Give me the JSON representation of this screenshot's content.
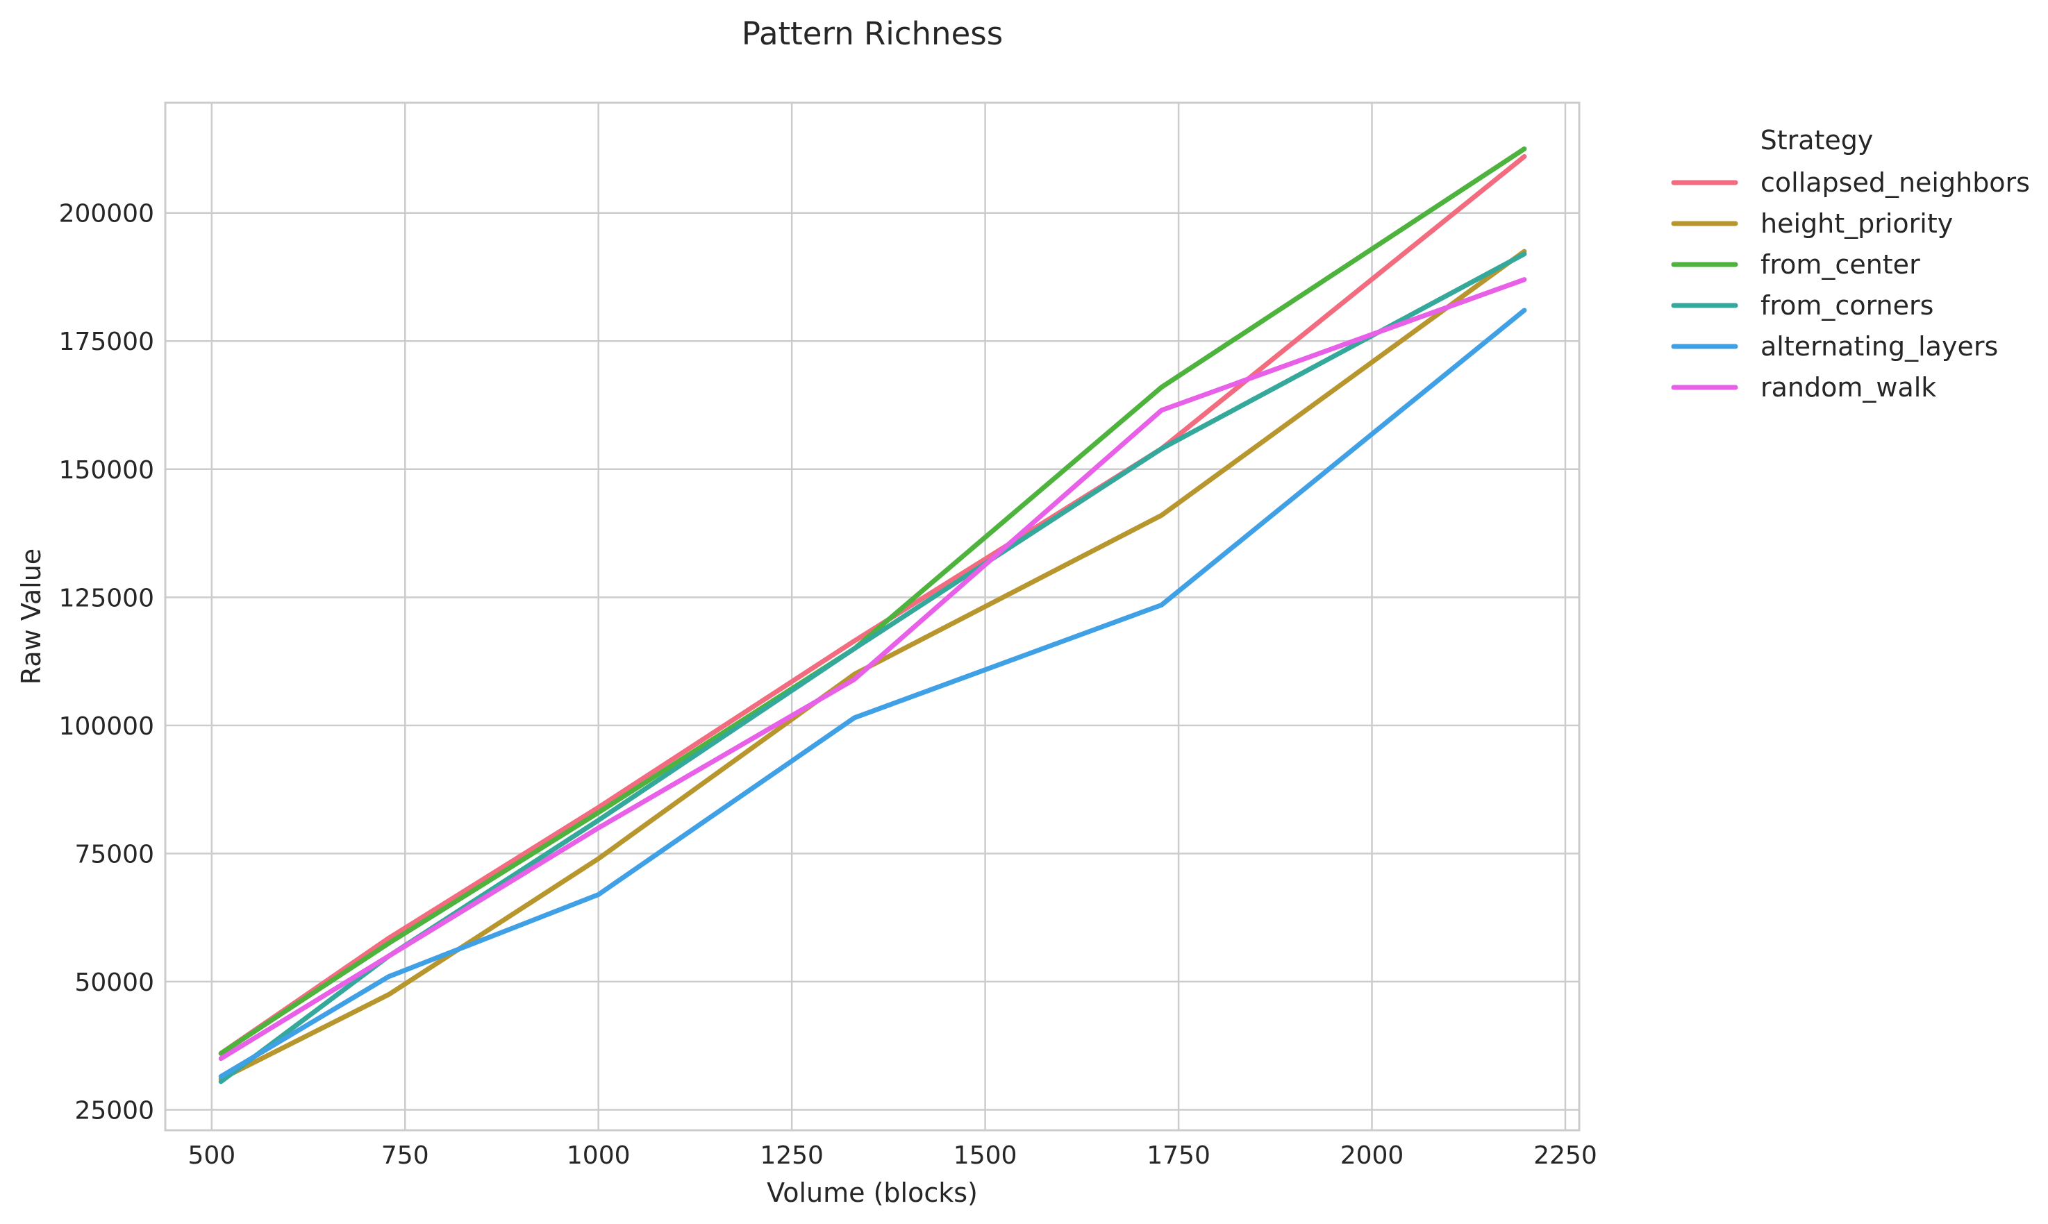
{
  "chart_data": {
    "type": "line",
    "title": "Pattern Richness",
    "xlabel": "Volume (blocks)",
    "ylabel": "Raw Value",
    "xlim": [
      440,
      2268
    ],
    "ylim": [
      21000,
      221500
    ],
    "xticks": [
      500,
      750,
      1000,
      1250,
      1500,
      1750,
      2000,
      2250
    ],
    "yticks": [
      25000,
      50000,
      75000,
      100000,
      125000,
      150000,
      175000,
      200000
    ],
    "x": [
      512,
      729,
      1000,
      1331,
      1728,
      2197
    ],
    "grid": true,
    "legend": {
      "title": "Strategy",
      "placement": "outside-top-right"
    },
    "series": [
      {
        "name": "collapsed_neighbors",
        "color": "#f26b7f",
        "values": [
          36000,
          58500,
          84000,
          116500,
          154000,
          211000
        ]
      },
      {
        "name": "height_priority",
        "color": "#b8962e",
        "values": [
          31000,
          47500,
          74000,
          110000,
          141000,
          192500
        ]
      },
      {
        "name": "from_center",
        "color": "#4db33d",
        "values": [
          36000,
          57500,
          83000,
          115000,
          166000,
          212500
        ]
      },
      {
        "name": "from_corners",
        "color": "#35a89c",
        "values": [
          30500,
          55000,
          81500,
          115000,
          154000,
          192000
        ]
      },
      {
        "name": "alternating_layers",
        "color": "#3fa0e6",
        "values": [
          31500,
          51000,
          67000,
          101500,
          123500,
          181000
        ]
      },
      {
        "name": "random_walk",
        "color": "#e85fe8",
        "values": [
          35000,
          55000,
          80000,
          109000,
          161500,
          187000
        ]
      }
    ]
  }
}
